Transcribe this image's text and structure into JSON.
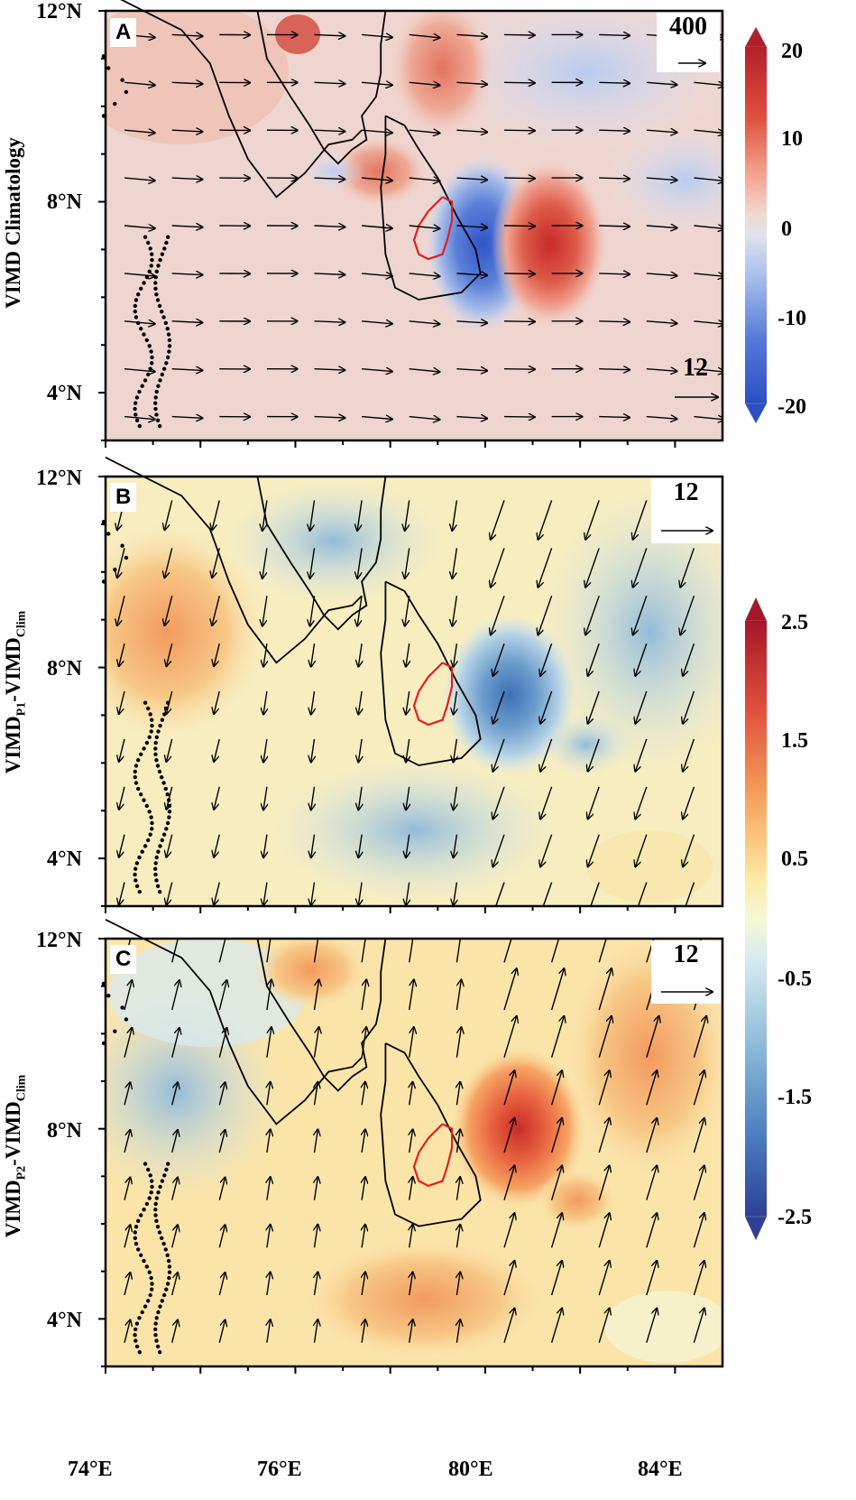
{
  "figure": {
    "x_ticks": [
      "74°E",
      "76°E",
      "80°E",
      "84°E"
    ],
    "y_ticks": [
      "12°N",
      "8°N",
      "4°N"
    ]
  },
  "panels": [
    {
      "letter": "A",
      "ylabel_main": "VIMD Climatology",
      "ylabel_sub": "",
      "ylabel_tail": "",
      "ref_vector_label": "400",
      "ref_vector_label2": "12",
      "colorbar_ticks": [
        "20",
        "10",
        "0",
        "-10",
        "-20"
      ]
    },
    {
      "letter": "B",
      "ylabel_main": "VIMD",
      "ylabel_sub": "P1",
      "ylabel_tail": "-VIMD",
      "ylabel_tail_sub": "Clim",
      "ref_vector_label": "12"
    },
    {
      "letter": "C",
      "ylabel_main": "VIMD",
      "ylabel_sub": "P2",
      "ylabel_tail": "-VIMD",
      "ylabel_tail_sub": "Clim",
      "ref_vector_label": "12"
    }
  ],
  "colorbar2_ticks": [
    "2.5",
    "1.5",
    "0.5",
    "-0.5",
    "-1.5",
    "-2.5"
  ],
  "chart_data": [
    {
      "type": "heatmap",
      "panel": "A",
      "field": "VIMD Climatology",
      "xlim": [
        74,
        87
      ],
      "ylim": [
        3,
        12
      ],
      "clim": [
        -20,
        20
      ],
      "colorbar_ticks": [
        20,
        10,
        0,
        -10,
        -20
      ],
      "features": [
        {
          "name": "negative core west of Sri Lanka",
          "lon": 79.8,
          "lat": 7.0,
          "value": -20
        },
        {
          "name": "positive core east Sri Lanka",
          "lon": 81.6,
          "lat": 7.2,
          "value": 18
        },
        {
          "name": "positive Palk region",
          "lon": 78.5,
          "lat": 9.5,
          "value": 8
        },
        {
          "name": "positive NW peak",
          "lon": 76.0,
          "lat": 11.6,
          "value": 12
        },
        {
          "name": "negative north-east",
          "lon": 81.5,
          "lat": 11.0,
          "value": -5
        }
      ],
      "vector_ref": [
        {
          "label": "400"
        },
        {
          "label": "12"
        }
      ],
      "vector_direction": "westerly (eastward)"
    },
    {
      "type": "heatmap",
      "panel": "B",
      "field": "VIMD P1 - VIMD Clim",
      "xlim": [
        74,
        87
      ],
      "ylim": [
        3,
        12
      ],
      "clim": [
        -2.5,
        2.5
      ],
      "colorbar_ticks": [
        2.5,
        1.5,
        0.5,
        -0.5,
        -1.5,
        -2.5
      ],
      "features": [
        {
          "name": "negative core over Sri Lanka",
          "lon": 80.3,
          "lat": 7.3,
          "value": -2.0
        },
        {
          "name": "positive west",
          "lon": 75.0,
          "lat": 8.6,
          "value": 1.2
        },
        {
          "name": "negative east",
          "lon": 85.0,
          "lat": 9.0,
          "value": -1.0
        }
      ],
      "vector_ref": [
        {
          "label": "12"
        }
      ],
      "vector_direction": "northerly (southward)"
    },
    {
      "type": "heatmap",
      "panel": "C",
      "field": "VIMD P2 - VIMD Clim",
      "xlim": [
        74,
        87
      ],
      "ylim": [
        3,
        12
      ],
      "clim": [
        -2.5,
        2.5
      ],
      "colorbar_ticks": [
        2.5,
        1.5,
        0.5,
        -0.5,
        -1.5,
        -2.5
      ],
      "features": [
        {
          "name": "positive core over Sri Lanka",
          "lon": 80.3,
          "lat": 7.3,
          "value": 2.2
        },
        {
          "name": "negative west",
          "lon": 75.0,
          "lat": 8.6,
          "value": -1.0
        },
        {
          "name": "positive east",
          "lon": 85.0,
          "lat": 9.5,
          "value": 1.2
        },
        {
          "name": "positive north",
          "lon": 76.5,
          "lat": 11.5,
          "value": 1.3
        }
      ],
      "vector_ref": [
        {
          "label": "12"
        }
      ],
      "vector_direction": "southerly (northward)"
    }
  ]
}
